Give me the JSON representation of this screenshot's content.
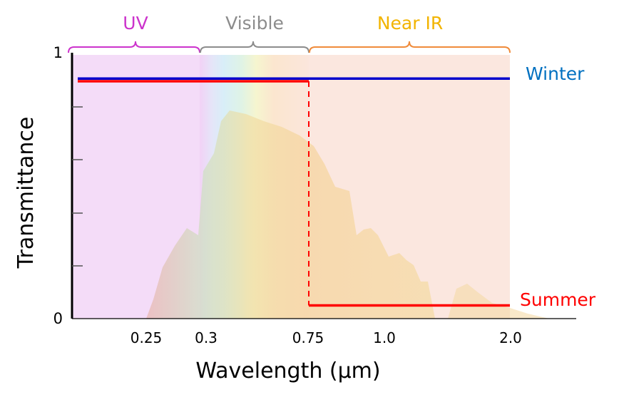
{
  "chart_data": {
    "type": "line",
    "xlabel": "Wavelength (μm)",
    "ylabel": "Transmittance",
    "x_ticks": [
      "0.25",
      "0.3",
      "0.75",
      "1.0",
      "2.0"
    ],
    "y_ticks": [
      "0",
      "1"
    ],
    "ylim": [
      0,
      1
    ],
    "regions": [
      {
        "name": "UV",
        "color": "#cc33cc",
        "from": null,
        "to": "0.3"
      },
      {
        "name": "Visible",
        "color": "#8c8c8c",
        "from": "0.3",
        "to": "0.75"
      },
      {
        "name": "Near IR",
        "color": "#f2b400",
        "from": "0.75",
        "to": "2.0"
      }
    ],
    "series": [
      {
        "name": "Winter",
        "color": "#0000cc",
        "label_color": "#0070c0",
        "points": [
          {
            "x": null,
            "y": 0.91
          },
          {
            "x": "2.0",
            "y": 0.91
          }
        ]
      },
      {
        "name": "Summer",
        "color": "#ff0000",
        "label_color": "#ff0000",
        "points": [
          {
            "x": null,
            "y": 0.9
          },
          {
            "x": "0.75",
            "y": 0.9
          },
          {
            "x": "0.75",
            "y": 0.05
          },
          {
            "x": "2.0",
            "y": 0.05
          }
        ],
        "dashed_transition_at": "0.75"
      }
    ]
  }
}
